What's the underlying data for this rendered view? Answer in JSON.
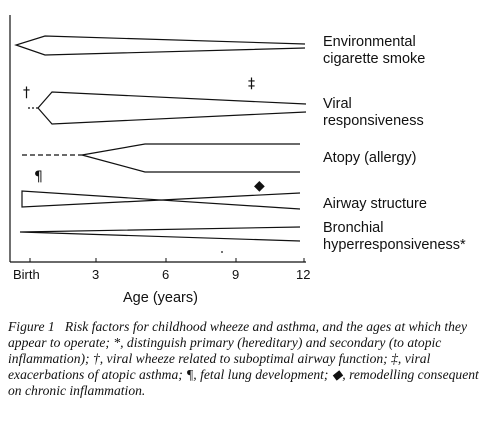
{
  "factors": [
    {
      "line1": "Environmental",
      "line2": "cigarette smoke"
    },
    {
      "line1": "Viral",
      "line2": "responsiveness"
    },
    {
      "line1": "Atopy (allergy)",
      "line2": ""
    },
    {
      "line1": "Airway structure",
      "line2": ""
    },
    {
      "line1": "Bronchial",
      "line2": "hyperresponsiveness*"
    }
  ],
  "axis": {
    "title": "Age (years)",
    "ticks": [
      "Birth",
      "3",
      "6",
      "9",
      "12"
    ]
  },
  "markers": {
    "dagger": "†",
    "double_dagger": "‡",
    "pilcrow": "¶",
    "diamond": "◆"
  },
  "caption": {
    "label": "Figure 1",
    "text": "Risk factors for childhood wheeze and asthma, and the ages at which they appear to operate; *, distinguish primary (hereditary) and secondary (to atopic inflammation); †, viral wheeze related to suboptimal airway function; ‡, viral exacerbations of atopic asthma; ¶, fetal lung development; ◆, remodelling consequent on chronic inflammation."
  }
}
